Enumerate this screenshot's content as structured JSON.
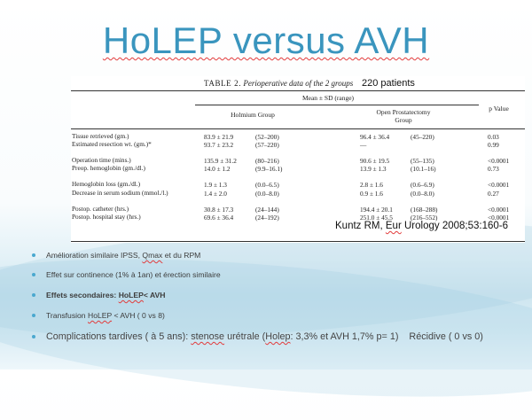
{
  "slide": {
    "title": "HoLEP versus AVH",
    "table": {
      "caption_label": "TABLE 2.",
      "caption_title": "Perioperative data of the 2 groups",
      "patients_note": "220 patients",
      "header_mean": "Mean ± SD (range)",
      "col_holmium": "Holmium Group",
      "col_open_1": "Open Prostatectomy",
      "col_open_2": "Group",
      "col_p": "p Value",
      "rows": [
        {
          "label": "Tissue retrieved (gm.)",
          "h_mean": "83.9 ± 21.9",
          "h_range": "(52–200)",
          "o_mean": "96.4 ± 36.4",
          "o_range": "(45–220)",
          "p": "0.03"
        },
        {
          "label": "Estimated resection wt. (gm.)*",
          "h_mean": "93.7 ± 23.2",
          "h_range": "(57–220)",
          "o_mean": "—",
          "o_range": "",
          "p": "0.99"
        },
        {
          "label": "Operation time (mins.)",
          "h_mean": "135.9 ± 31.2",
          "h_range": "(80–216)",
          "o_mean": "90.6 ± 19.5",
          "o_range": "(55–135)",
          "p": "<0.0001"
        },
        {
          "label": "Preop. hemoglobin (gm./dl.)",
          "h_mean": "14.0 ± 1.2",
          "h_range": "(9.9–16.1)",
          "o_mean": "13.9 ± 1.3",
          "o_range": "(10.1–16)",
          "p": "0.73"
        },
        {
          "label": "Hemoglobin loss (gm./dl.)",
          "h_mean": "1.9 ± 1.3",
          "h_range": "(0.0–6.5)",
          "o_mean": "2.8 ± 1.6",
          "o_range": "(0.6–6.9)",
          "p": "<0.0001"
        },
        {
          "label": "Decrease in serum sodium (mmol./l.)",
          "h_mean": "1.4 ± 2.0",
          "h_range": "(0.0–8.0)",
          "o_mean": "0.9 ± 1.6",
          "o_range": "(0.0–8.0)",
          "p": "0.27"
        },
        {
          "label": "Postop. catheter (hrs.)",
          "h_mean": "30.8 ± 17.3",
          "h_range": "(24–144)",
          "o_mean": "194.4 ± 20.1",
          "o_range": "(168–288)",
          "p": "<0.0001"
        },
        {
          "label": "Postop. hospital stay (hrs.)",
          "h_mean": "69.6 ± 36.4",
          "h_range": "(24–192)",
          "o_mean": "251.0 ± 45.5",
          "o_range": "(216–552)",
          "p": "<0.0001"
        }
      ]
    },
    "citation": {
      "author": "Kuntz RM,",
      "journal": "Eur",
      "rest": "Urology 2008;53:160-6"
    },
    "bullets": {
      "b1_a": "Amélioration similaire IPSS,",
      "b1_b": "Qmax",
      "b1_c": "et du RPM",
      "b2": "Effet sur continence (1% à 1an) et érection similaire",
      "b3_a": "Effets secondaires:",
      "b3_b": "HoLEP",
      "b3_c": "< AVH",
      "b4_a": "Transfusion",
      "b4_b": "HoLEP",
      "b4_c": "< AVH ( 0 vs 8)",
      "b5_a": "Complications tardives ( à 5 ans):",
      "b5_b": "stenose",
      "b5_c": "urétrale (",
      "b5_d": "Holep",
      "b5_e": ": 3,3% et AVH 1,7% p= 1)    Récidive ( 0 vs 0)"
    },
    "colors": {
      "title": "#3a95be",
      "bullet_dot": "#4aa8cf",
      "spell_underline": "#e23b3b"
    }
  }
}
